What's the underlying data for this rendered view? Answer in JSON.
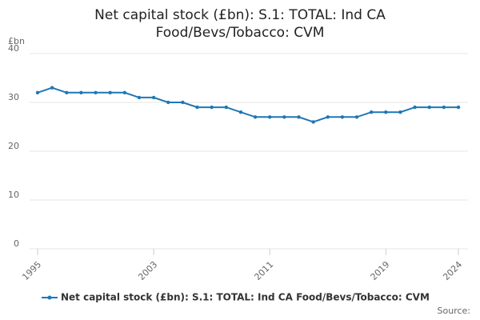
{
  "chart_data": {
    "type": "line",
    "title": "Net capital stock (£bn): S.1: TOTAL: Ind CA Food/Bevs/Tobacco: CVM",
    "y_label": "£bn",
    "source": "Source:",
    "x": [
      1995,
      1996,
      1997,
      1998,
      1999,
      2000,
      2001,
      2002,
      2003,
      2004,
      2005,
      2006,
      2007,
      2008,
      2009,
      2010,
      2011,
      2012,
      2013,
      2014,
      2015,
      2016,
      2017,
      2018,
      2019,
      2020,
      2021,
      2022,
      2023,
      2024
    ],
    "series": [
      {
        "name": "Net capital stock (£bn): S.1: TOTAL: Ind CA Food/Bevs/Tobacco: CVM",
        "color": "#1f77b4",
        "values": [
          32,
          33,
          32,
          32,
          32,
          32,
          32,
          31,
          31,
          30,
          30,
          29,
          29,
          29,
          28,
          27,
          27,
          27,
          27,
          26,
          27,
          27,
          27,
          28,
          28,
          28,
          29,
          29,
          29,
          29
        ]
      }
    ],
    "xlim": [
      1995,
      2024
    ],
    "xticks": [
      1995,
      2003,
      2011,
      2019,
      2024
    ],
    "ylim": [
      0,
      40
    ],
    "yticks": [
      0,
      10,
      20,
      30,
      40
    ],
    "grid": true
  }
}
